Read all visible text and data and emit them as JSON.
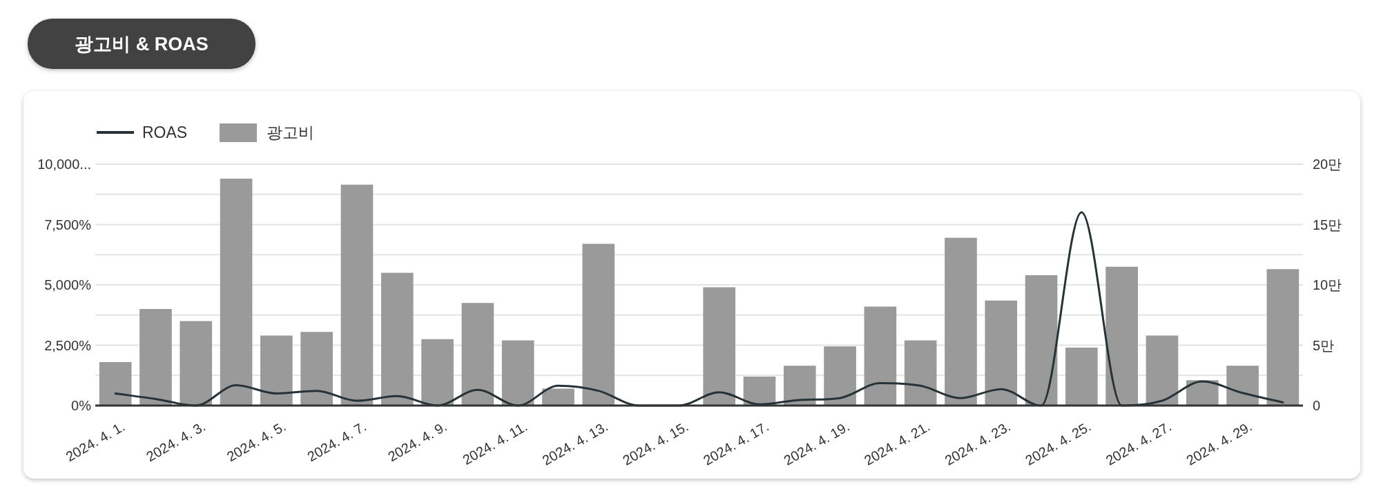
{
  "chart_data": {
    "type": "bar",
    "title": "광고비 & ROAS",
    "categories": [
      "2024. 4. 1.",
      null,
      "2024. 4. 3.",
      null,
      "2024. 4. 5.",
      null,
      "2024. 4. 7.",
      null,
      "2024. 4. 9.",
      null,
      "2024. 4. 11.",
      null,
      "2024. 4. 13.",
      null,
      "2024. 4. 15.",
      null,
      "2024. 4. 17.",
      null,
      "2024. 4. 19.",
      null,
      "2024. 4. 21.",
      null,
      "2024. 4. 23.",
      null,
      "2024. 4. 25.",
      null,
      "2024. 4. 27.",
      null,
      "2024. 4. 29.",
      null
    ],
    "series": [
      {
        "name": "ROAS",
        "type": "line",
        "color": "#263238",
        "values": [
          500,
          270,
          0,
          840,
          500,
          610,
          200,
          390,
          0,
          650,
          0,
          820,
          610,
          0,
          0,
          550,
          50,
          230,
          310,
          930,
          820,
          310,
          680,
          0,
          8010,
          0,
          200,
          1000,
          520,
          130
        ]
      },
      {
        "name": "광고비",
        "axis": "y2",
        "color": "#9a9a9a",
        "values": [
          3.6,
          8.0,
          7.0,
          18.8,
          5.8,
          6.1,
          18.3,
          11.0,
          5.5,
          8.5,
          5.4,
          1.4,
          13.4,
          0,
          0,
          9.8,
          2.4,
          3.3,
          4.9,
          8.2,
          5.4,
          13.9,
          8.7,
          10.8,
          4.8,
          11.5,
          5.8,
          2.1,
          3.3,
          11.3
        ]
      }
    ],
    "ylim": [
      0,
      10000
    ],
    "yticks": [
      {
        "value": 0,
        "label": "0%"
      },
      {
        "value": 1250,
        "label": null
      },
      {
        "value": 2500,
        "label": "2,500%"
      },
      {
        "value": 3750,
        "label": null
      },
      {
        "value": 5000,
        "label": "5,000%"
      },
      {
        "value": 6250,
        "label": null
      },
      {
        "value": 7500,
        "label": "7,500%"
      },
      {
        "value": 8750,
        "label": null
      },
      {
        "value": 10000,
        "label": "10,000..."
      }
    ],
    "y2lim": [
      0,
      20
    ],
    "y2ticks": [
      0,
      {
        "value": 5,
        "label": "5만"
      },
      {
        "value": 10,
        "label": "10만"
      },
      {
        "value": 15,
        "label": "15만"
      },
      {
        "value": 20,
        "label": "20만"
      }
    ],
    "grid": "y",
    "legend": "top left"
  }
}
